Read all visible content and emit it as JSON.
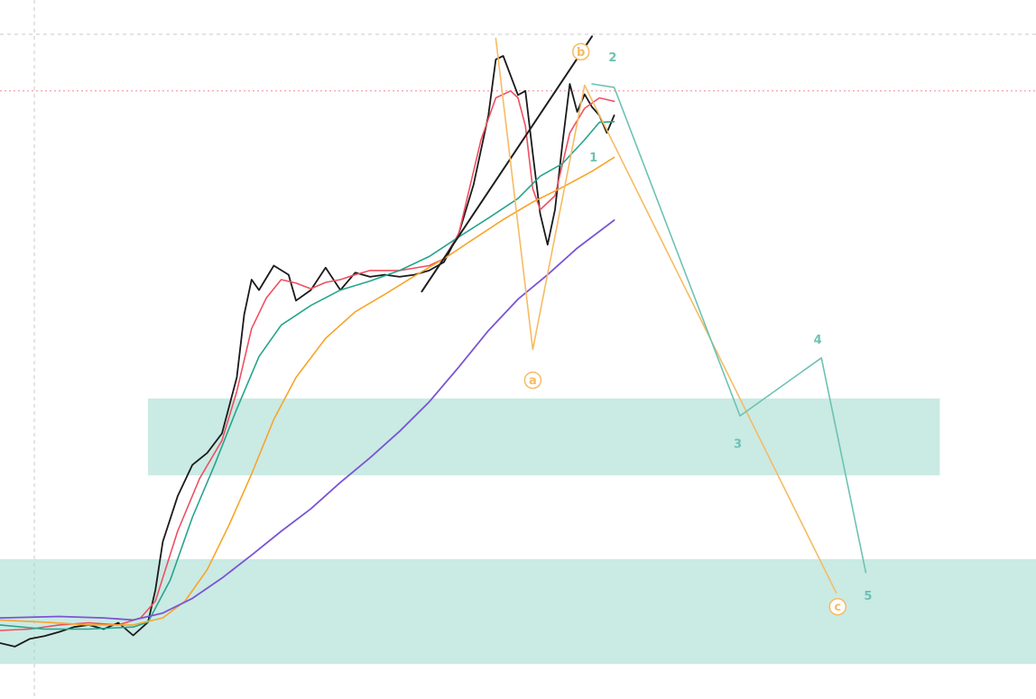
{
  "colors": {
    "zone": "#9fd8cd",
    "price": "#1a1a1a",
    "ma_red": "#ef4f5f",
    "ma_green": "#26a48c",
    "ma_orange": "#f7a52a",
    "ma_purple": "#7a55d4",
    "wave_orange": "#f6bb62",
    "wave_teal": "#6cc2b3",
    "trendline": "#1f1f1f",
    "grid": "#c8c8c8",
    "red_level": "#f08a95"
  },
  "chart_data": {
    "type": "line",
    "title": "",
    "xlabel": "",
    "ylabel": "",
    "grid": false,
    "x_range": [
      0,
      140
    ],
    "y_range": [
      0,
      100
    ],
    "zones": [
      {
        "name": "upper-support-zone",
        "x_from": 20,
        "x_to": 127,
        "y_from": 32,
        "y_to": 43
      },
      {
        "name": "lower-support-zone",
        "x_from": 0,
        "x_to": 140,
        "y_from": 5,
        "y_to": 20
      }
    ],
    "red_level": 87,
    "series": [
      {
        "key": "price",
        "color_key": "price",
        "width": 1.8,
        "points": [
          [
            0,
            8
          ],
          [
            2,
            7.5
          ],
          [
            4,
            8.6
          ],
          [
            6,
            9
          ],
          [
            8,
            9.6
          ],
          [
            10,
            10.3
          ],
          [
            12,
            10.6
          ],
          [
            14,
            10
          ],
          [
            16,
            10.9
          ],
          [
            18,
            9.1
          ],
          [
            20,
            11
          ],
          [
            21,
            15.6
          ],
          [
            22,
            22.5
          ],
          [
            24,
            29
          ],
          [
            26,
            33.5
          ],
          [
            28,
            35.2
          ],
          [
            30,
            38
          ],
          [
            32,
            46
          ],
          [
            33,
            55
          ],
          [
            34,
            60
          ],
          [
            35,
            58.5
          ],
          [
            37,
            62
          ],
          [
            39,
            60.7
          ],
          [
            40,
            57
          ],
          [
            42,
            58.5
          ],
          [
            44,
            61.7
          ],
          [
            46,
            58.5
          ],
          [
            48,
            61
          ],
          [
            50,
            60.4
          ],
          [
            52,
            60.7
          ],
          [
            54,
            60.4
          ],
          [
            56,
            60.7
          ],
          [
            58,
            61.3
          ],
          [
            60,
            62.5
          ],
          [
            62,
            66.6
          ],
          [
            64,
            73.6
          ],
          [
            66,
            83.5
          ],
          [
            67,
            91.5
          ],
          [
            68,
            92
          ],
          [
            70,
            86.4
          ],
          [
            71,
            87
          ],
          [
            72,
            78
          ],
          [
            73,
            69.4
          ],
          [
            74,
            65
          ],
          [
            75,
            70
          ],
          [
            76,
            79.4
          ],
          [
            77,
            88
          ],
          [
            78,
            84
          ],
          [
            79,
            86.5
          ],
          [
            80,
            84.7
          ],
          [
            81,
            83.5
          ],
          [
            82,
            81
          ],
          [
            83,
            83.5
          ]
        ]
      },
      {
        "key": "ma-fast",
        "color_key": "ma_red",
        "width": 1.6,
        "points": [
          [
            0,
            9.8
          ],
          [
            4,
            10
          ],
          [
            8,
            10.6
          ],
          [
            12,
            10.9
          ],
          [
            16,
            10.6
          ],
          [
            19,
            11.6
          ],
          [
            21,
            14
          ],
          [
            24,
            24
          ],
          [
            27,
            31.6
          ],
          [
            30,
            37
          ],
          [
            32,
            44
          ],
          [
            34,
            53
          ],
          [
            36,
            57.4
          ],
          [
            38,
            60
          ],
          [
            40,
            59.5
          ],
          [
            42,
            58.7
          ],
          [
            44,
            59.6
          ],
          [
            46,
            60
          ],
          [
            48,
            60.7
          ],
          [
            50,
            61.3
          ],
          [
            54,
            61.3
          ],
          [
            58,
            62
          ],
          [
            60,
            63
          ],
          [
            62,
            66.6
          ],
          [
            65,
            80
          ],
          [
            67,
            86
          ],
          [
            69,
            87
          ],
          [
            70,
            86
          ],
          [
            71,
            82
          ],
          [
            72,
            73
          ],
          [
            73,
            70
          ],
          [
            75,
            72
          ],
          [
            77,
            81
          ],
          [
            79,
            84.5
          ],
          [
            81,
            86
          ],
          [
            83,
            85.5
          ]
        ]
      },
      {
        "key": "ma-mid",
        "color_key": "ma_green",
        "width": 1.6,
        "points": [
          [
            0,
            10.6
          ],
          [
            6,
            10
          ],
          [
            12,
            10
          ],
          [
            18,
            10.3
          ],
          [
            20,
            11
          ],
          [
            23,
            17
          ],
          [
            26,
            26
          ],
          [
            29,
            33.5
          ],
          [
            32,
            41.5
          ],
          [
            35,
            49
          ],
          [
            38,
            53.5
          ],
          [
            42,
            56.3
          ],
          [
            46,
            58.5
          ],
          [
            50,
            59.8
          ],
          [
            54,
            61.3
          ],
          [
            58,
            63.3
          ],
          [
            62,
            66.1
          ],
          [
            66,
            68.8
          ],
          [
            70,
            71.6
          ],
          [
            73,
            74.8
          ],
          [
            76,
            76.6
          ],
          [
            79,
            80
          ],
          [
            81,
            82.5
          ],
          [
            83,
            82.6
          ]
        ]
      },
      {
        "key": "ma-slow",
        "color_key": "ma_orange",
        "width": 1.6,
        "points": [
          [
            0,
            11.3
          ],
          [
            6,
            11
          ],
          [
            12,
            10.6
          ],
          [
            18,
            10.6
          ],
          [
            22,
            11.6
          ],
          [
            25,
            14
          ],
          [
            28,
            18.5
          ],
          [
            31,
            25
          ],
          [
            34,
            32.2
          ],
          [
            37,
            40
          ],
          [
            40,
            46
          ],
          [
            44,
            51.6
          ],
          [
            48,
            55.4
          ],
          [
            52,
            57.9
          ],
          [
            56,
            60.5
          ],
          [
            60,
            63
          ],
          [
            64,
            65.8
          ],
          [
            68,
            68.6
          ],
          [
            72,
            71.1
          ],
          [
            76,
            73.2
          ],
          [
            80,
            75.5
          ],
          [
            83,
            77.5
          ]
        ]
      },
      {
        "key": "ma-long",
        "color_key": "ma_purple",
        "width": 1.8,
        "points": [
          [
            0,
            11.6
          ],
          [
            8,
            11.8
          ],
          [
            14,
            11.6
          ],
          [
            18,
            11.3
          ],
          [
            22,
            12.3
          ],
          [
            26,
            14.4
          ],
          [
            30,
            17.3
          ],
          [
            34,
            20.6
          ],
          [
            38,
            24
          ],
          [
            42,
            27.2
          ],
          [
            46,
            31
          ],
          [
            50,
            34.5
          ],
          [
            54,
            38.3
          ],
          [
            58,
            42.5
          ],
          [
            62,
            47.5
          ],
          [
            66,
            52.7
          ],
          [
            70,
            57.2
          ],
          [
            74,
            60.7
          ],
          [
            78,
            64.5
          ],
          [
            83,
            68.5
          ]
        ]
      },
      {
        "key": "trendline",
        "color_key": "trendline",
        "width": 2,
        "points": [
          [
            57,
            58.3
          ],
          [
            80,
            94.8
          ]
        ]
      },
      {
        "key": "wave-abc",
        "color_key": "wave_orange",
        "width": 1.6,
        "points": [
          [
            67,
            94.5
          ],
          [
            72,
            50
          ],
          [
            79,
            87.8
          ],
          [
            113,
            15.2
          ]
        ]
      },
      {
        "key": "wave-12345",
        "color_key": "wave_teal",
        "width": 1.6,
        "points": [
          [
            80,
            88
          ],
          [
            83,
            87.5
          ],
          [
            100,
            40.5
          ],
          [
            111,
            48.8
          ],
          [
            117,
            18.1
          ]
        ]
      }
    ],
    "wave_labels": [
      {
        "text": "1",
        "x": 80.2,
        "y": 77.5,
        "circled": false,
        "color_key": "wave_teal"
      },
      {
        "text": "2",
        "x": 82.8,
        "y": 91.8,
        "circled": false,
        "color_key": "wave_teal"
      },
      {
        "text": "3",
        "x": 99.7,
        "y": 36.5,
        "circled": false,
        "color_key": "wave_teal"
      },
      {
        "text": "4",
        "x": 110.5,
        "y": 51.4,
        "circled": false,
        "color_key": "wave_teal"
      },
      {
        "text": "5",
        "x": 117.3,
        "y": 14.8,
        "circled": false,
        "color_key": "wave_teal"
      },
      {
        "text": "a",
        "x": 72,
        "y": 45.6,
        "circled": true,
        "color_key": "wave_orange"
      },
      {
        "text": "b",
        "x": 78.5,
        "y": 92.6,
        "circled": true,
        "color_key": "wave_orange"
      },
      {
        "text": "c",
        "x": 113.2,
        "y": 13.2,
        "circled": true,
        "color_key": "wave_orange"
      }
    ]
  }
}
